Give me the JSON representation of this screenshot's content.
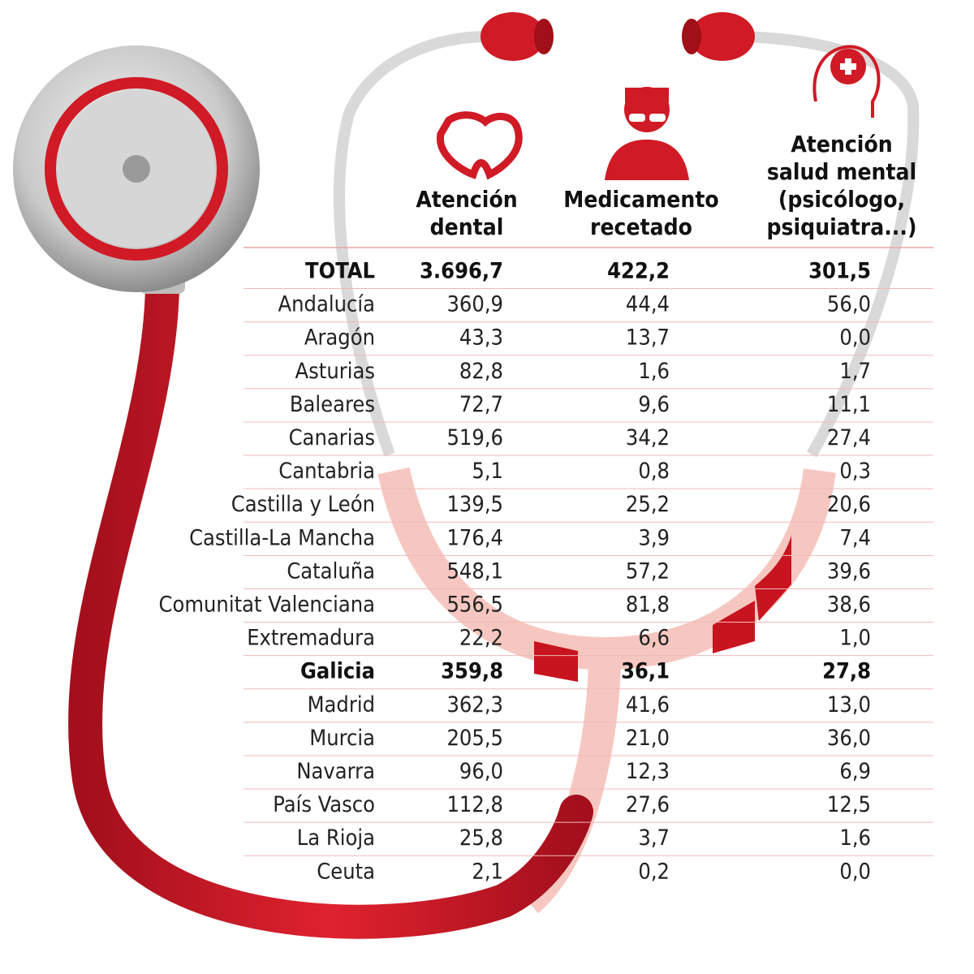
{
  "table": {
    "headers": [
      [
        "Atención",
        "dental"
      ],
      [
        "Medicamento",
        "recetado"
      ],
      [
        "Atención",
        "salud mental",
        "(psicólogo,",
        "psiquiatra...)"
      ]
    ],
    "rows": [
      {
        "label": "TOTAL",
        "values": [
          "3.696,7",
          "422,2",
          "301,5"
        ],
        "bold": true
      },
      {
        "label": "Andalucía",
        "values": [
          "360,9",
          "44,4",
          "56,0"
        ]
      },
      {
        "label": "Aragón",
        "values": [
          "43,3",
          "13,7",
          "0,0"
        ]
      },
      {
        "label": "Asturias",
        "values": [
          "82,8",
          "1,6",
          "1,7"
        ]
      },
      {
        "label": "Baleares",
        "values": [
          "72,7",
          "9,6",
          "11,1"
        ]
      },
      {
        "label": "Canarias",
        "values": [
          "519,6",
          "34,2",
          "27,4"
        ]
      },
      {
        "label": "Cantabria",
        "values": [
          "5,1",
          "0,8",
          "0,3"
        ]
      },
      {
        "label": "Castilla y León",
        "values": [
          "139,5",
          "25,2",
          "20,6"
        ]
      },
      {
        "label": "Castilla-La Mancha",
        "values": [
          "176,4",
          "3,9",
          "7,4"
        ]
      },
      {
        "label": "Cataluña",
        "values": [
          "548,1",
          "57,2",
          "39,6"
        ]
      },
      {
        "label": "Comunitat Valenciana",
        "values": [
          "556,5",
          "81,8",
          "38,6"
        ]
      },
      {
        "label": "Extremadura",
        "values": [
          "22,2",
          "6,6",
          "1,0"
        ]
      },
      {
        "label": "Galicia",
        "values": [
          "359,8",
          "36,1",
          "27,8"
        ],
        "bold": true
      },
      {
        "label": "Madrid",
        "values": [
          "362,3",
          "41,6",
          "13,0"
        ]
      },
      {
        "label": "Murcia",
        "values": [
          "205,5",
          "21,0",
          "36,0"
        ]
      },
      {
        "label": "Navarra",
        "values": [
          "96,0",
          "12,3",
          "6,9"
        ]
      },
      {
        "label": "País Vasco",
        "values": [
          "112,8",
          "27,6",
          "12,5"
        ]
      },
      {
        "label": "La Rioja",
        "values": [
          "25,8",
          "3,7",
          "1,6"
        ]
      },
      {
        "label": "Ceuta",
        "values": [
          "2,1",
          "0,2",
          "0,0"
        ]
      }
    ]
  }
}
